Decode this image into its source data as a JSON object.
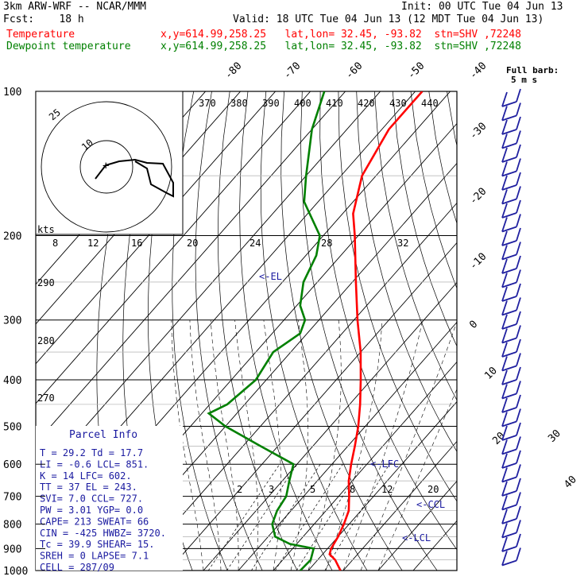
{
  "header": {
    "model": "3km ARW-WRF -- NCAR/MMM",
    "init": "Init: 00 UTC Tue 04 Jun 13",
    "fcst": "Fcst:    18 h",
    "valid": "Valid: 18 UTC Tue 04 Jun 13 (12 MDT Tue 04 Jun 13)",
    "temp_label": "Temperature",
    "temp_info": "x,y=614.99,258.25   lat,lon= 32.45, -93.82  stn=SHV ,72248",
    "dew_label": "Dewpoint temperature",
    "dew_info": "x,y=614.99,258.25   lat,lon= 32.45, -93.82  stn=SHV ,72248"
  },
  "colors": {
    "temperature": "#ff0000",
    "dewpoint": "#008000",
    "barbs": "#2020a0",
    "parcel_text": "#1a1aa0",
    "grid": "#000000"
  },
  "chart_data": {
    "type": "line",
    "subtype": "skew-T log-p sounding",
    "pressure_levels": [
      100,
      200,
      300,
      400,
      500,
      600,
      700,
      800,
      900,
      1000
    ],
    "temperature_scale_labels": [
      -80,
      -70,
      -60,
      -50,
      -40,
      -30,
      -20,
      -10,
      0,
      10,
      20,
      30,
      40
    ],
    "theta_labels": [
      370,
      380,
      390,
      400,
      410,
      420,
      430,
      440,
      290,
      280,
      270
    ],
    "mixing_ratio_labels": [
      "2",
      "3",
      "5",
      "8",
      "12",
      "20",
      "12",
      "16",
      "20",
      "24",
      "28",
      "32",
      "8"
    ],
    "series": [
      {
        "name": "Temperature",
        "points": [
          [
            1000,
            29.2
          ],
          [
            950,
            25
          ],
          [
            925,
            22
          ],
          [
            900,
            21
          ],
          [
            850,
            20
          ],
          [
            800,
            18.5
          ],
          [
            750,
            16.5
          ],
          [
            700,
            13
          ],
          [
            650,
            9
          ],
          [
            600,
            5.5
          ],
          [
            550,
            2
          ],
          [
            500,
            -2
          ],
          [
            450,
            -7
          ],
          [
            400,
            -13
          ],
          [
            350,
            -20
          ],
          [
            300,
            -29
          ],
          [
            250,
            -39
          ],
          [
            200,
            -51
          ],
          [
            180,
            -57
          ],
          [
            150,
            -64
          ],
          [
            120,
            -68
          ],
          [
            100,
            -68
          ]
        ]
      },
      {
        "name": "Dewpoint temperature",
        "points": [
          [
            1000,
            17.7
          ],
          [
            950,
            18
          ],
          [
            900,
            16
          ],
          [
            880,
            8
          ],
          [
            850,
            2
          ],
          [
            800,
            -2
          ],
          [
            750,
            -4
          ],
          [
            700,
            -5
          ],
          [
            650,
            -8
          ],
          [
            600,
            -11
          ],
          [
            550,
            -25
          ],
          [
            500,
            -40
          ],
          [
            470,
            -48
          ],
          [
            450,
            -45
          ],
          [
            400,
            -43
          ],
          [
            350,
            -45
          ],
          [
            320,
            -42
          ],
          [
            300,
            -44
          ],
          [
            280,
            -49
          ],
          [
            250,
            -54
          ],
          [
            220,
            -57
          ],
          [
            200,
            -61
          ],
          [
            170,
            -74
          ],
          [
            150,
            -80
          ],
          [
            120,
            -90
          ],
          [
            100,
            -96
          ]
        ]
      }
    ],
    "parcel_markers": [
      "<-EL",
      "<-LFC",
      "<-CCL",
      "<-LCL"
    ],
    "hodograph": {
      "rings": [
        "25",
        "10"
      ],
      "speed_label": "kts"
    },
    "full_barb_label": "Full barb:",
    "full_barb_unit": "5 m s"
  },
  "parcel": {
    "title": "Parcel Info",
    "rows": [
      "T  =   29.2  Td =  17.7",
      "LI =   -0.6  LCL=  851.",
      "K  =     14  LFC=  602.",
      "TT =     37  EL =  243.",
      "SVI=    7.0  CCL=  727.",
      "PW =   3.01  YGP=   0.0",
      "CAPE=   213  SWEAT=  66",
      "CIN =  -425  HWBZ= 3720.",
      "Tc =   39.9  SHEAR=  15.",
      "SREH =    0  LAPSE=  7.1",
      "CELL = 287/09"
    ]
  }
}
